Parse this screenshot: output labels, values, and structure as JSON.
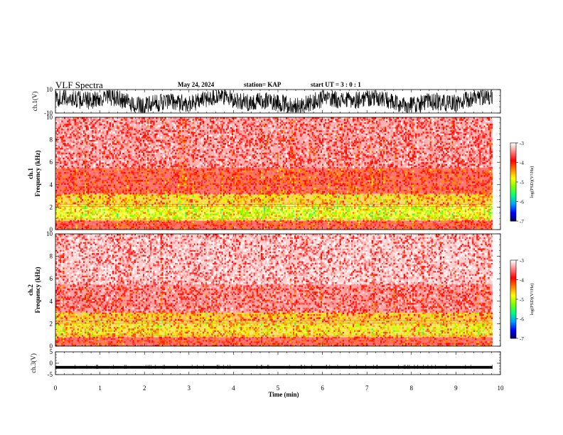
{
  "header": {
    "title": "VLF Spectra",
    "date": "May 24, 2024",
    "station": "station= KAP",
    "start_ut": "start  UT =   3  : 0   : 1"
  },
  "colors": {
    "waveform": "#000000",
    "spec_background": "#ffffff",
    "colormap": [
      "#00004e",
      "#0000ff",
      "#00a0ff",
      "#00ff80",
      "#7fff00",
      "#ffff00",
      "#ff8000",
      "#ff0000",
      "#ff7f7f",
      "#ffffff"
    ]
  },
  "chart_data": [
    {
      "type": "line",
      "name": "ch1-waveform",
      "ylabel": "ch.1(V)",
      "ylim": [
        -10,
        10
      ],
      "yticks": [
        "10",
        "-10"
      ],
      "xlim": [
        0,
        10
      ],
      "x_end": 9.82,
      "description_of_values": "noisy voltage trace fluctuating roughly between -9 and 9 V",
      "amplitude": 9
    },
    {
      "type": "heatmap",
      "name": "ch1-spectrogram",
      "ylabel": "ch.1",
      "ylabel2": "Frequency  (kHz)",
      "ylim": [
        0,
        10
      ],
      "yticks": [
        "0",
        "2",
        "4",
        "6",
        "8",
        "10"
      ],
      "xlim": [
        0,
        10
      ],
      "x_end": 9.82,
      "dominant_bands_khz": [
        {
          "from": 0.0,
          "to": 0.8,
          "level": -3.9
        },
        {
          "from": 0.8,
          "to": 2.2,
          "level": -4.8
        },
        {
          "from": 2.2,
          "to": 3.2,
          "level": -4.5
        },
        {
          "from": 3.2,
          "to": 5.5,
          "level": -3.9
        },
        {
          "from": 5.5,
          "to": 10.0,
          "level": -3.5
        }
      ],
      "colorbar": {
        "label": "log(PSD)(V²/Hz)",
        "min": -7,
        "max": -3,
        "ticks": [
          "-3",
          "-4",
          "-5",
          "-6",
          "-7"
        ]
      }
    },
    {
      "type": "heatmap",
      "name": "ch2-spectrogram",
      "ylabel": "ch.2",
      "ylabel2": "Frequency  (kHz)",
      "ylim": [
        0,
        10
      ],
      "yticks": [
        "0",
        "2",
        "4",
        "6",
        "8",
        "10"
      ],
      "xlim": [
        0,
        10
      ],
      "x_end": 9.82,
      "dominant_bands_khz": [
        {
          "from": 0.0,
          "to": 0.8,
          "level": -3.9
        },
        {
          "from": 0.8,
          "to": 2.2,
          "level": -4.6
        },
        {
          "from": 2.2,
          "to": 3.0,
          "level": -4.4
        },
        {
          "from": 3.0,
          "to": 5.5,
          "level": -3.6
        },
        {
          "from": 5.5,
          "to": 10.0,
          "level": -3.3
        }
      ],
      "colorbar": {
        "label": "log(PSD)(V²/Hz)",
        "min": -7,
        "max": -3,
        "ticks": [
          "-3",
          "-4",
          "-5",
          "-6",
          "-7"
        ]
      }
    },
    {
      "type": "line",
      "name": "ch3-waveform",
      "ylabel": "ch.3(V)",
      "ylim": [
        -5,
        5
      ],
      "yticks": [
        "5",
        "0",
        "-5"
      ],
      "xlim": [
        0,
        10
      ],
      "x_end": 9.82,
      "description_of_values": "thick flat band centered near -1.8 V",
      "center": -1.8,
      "amplitude": 0.6
    }
  ],
  "xaxis": {
    "label": "Time  (min)",
    "ticks": [
      "0",
      "1",
      "2",
      "3",
      "4",
      "5",
      "6",
      "7",
      "8",
      "9",
      "10"
    ]
  }
}
